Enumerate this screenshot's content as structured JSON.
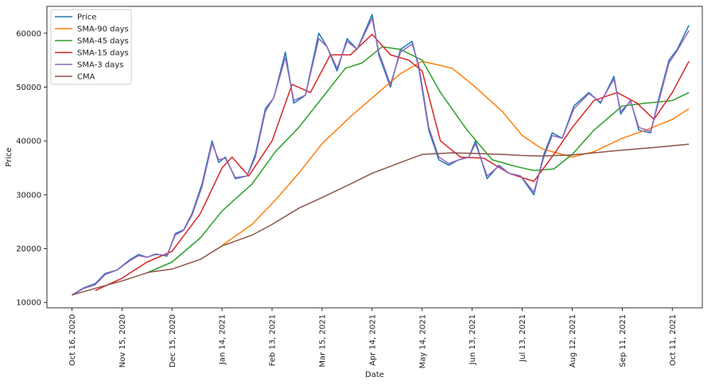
{
  "chart_data": {
    "type": "line",
    "title": "",
    "xlabel": "Date",
    "ylabel": "Price",
    "x_start": "2020-10-16",
    "x_end": "2021-10-21",
    "xlim": [
      "2020-10-01",
      "2021-10-29"
    ],
    "ylim": [
      9000,
      65000
    ],
    "x_ticks": [
      "2020-10-16",
      "2020-11-15",
      "2020-12-15",
      "2021-01-14",
      "2021-02-13",
      "2021-03-15",
      "2021-04-14",
      "2021-05-14",
      "2021-06-13",
      "2021-07-13",
      "2021-08-12",
      "2021-09-11",
      "2021-10-11"
    ],
    "x_tick_labels": [
      "Oct 16, 2020",
      "Nov 15, 2020",
      "Dec 15, 2020",
      "Jan 14, 2021",
      "Feb 13, 2021",
      "Mar 15, 2021",
      "Apr 14, 2021",
      "May 14, 2021",
      "Jun 13, 2021",
      "Jul 13, 2021",
      "Aug 12, 2021",
      "Sep 11, 2021",
      "Oct 11, 2021"
    ],
    "y_ticks": [
      10000,
      20000,
      30000,
      40000,
      50000,
      60000
    ],
    "grid": false,
    "legend_position": "top-left",
    "series": [
      {
        "name": "Price",
        "color": "#1f77b4",
        "points": [
          [
            "2020-10-16",
            11400
          ],
          [
            "2020-10-23",
            12700
          ],
          [
            "2020-10-30",
            13500
          ],
          [
            "2020-11-05",
            15400
          ],
          [
            "2020-11-12",
            16000
          ],
          [
            "2020-11-20",
            18000
          ],
          [
            "2020-11-25",
            18900
          ],
          [
            "2020-11-30",
            18400
          ],
          [
            "2020-12-05",
            19000
          ],
          [
            "2020-12-12",
            18600
          ],
          [
            "2020-12-17",
            22800
          ],
          [
            "2020-12-22",
            23500
          ],
          [
            "2020-12-27",
            26500
          ],
          [
            "2021-01-02",
            32000
          ],
          [
            "2021-01-08",
            40000
          ],
          [
            "2021-01-12",
            36000
          ],
          [
            "2021-01-16",
            37000
          ],
          [
            "2021-01-22",
            33000
          ],
          [
            "2021-01-29",
            33500
          ],
          [
            "2021-02-03",
            37500
          ],
          [
            "2021-02-09",
            46000
          ],
          [
            "2021-02-14",
            48000
          ],
          [
            "2021-02-21",
            56500
          ],
          [
            "2021-02-26",
            47000
          ],
          [
            "2021-03-05",
            48500
          ],
          [
            "2021-03-13",
            60000
          ],
          [
            "2021-03-18",
            57500
          ],
          [
            "2021-03-24",
            53000
          ],
          [
            "2021-03-30",
            59000
          ],
          [
            "2021-04-05",
            57000
          ],
          [
            "2021-04-14",
            63500
          ],
          [
            "2021-04-18",
            56000
          ],
          [
            "2021-04-25",
            50000
          ],
          [
            "2021-05-01",
            57000
          ],
          [
            "2021-05-08",
            58500
          ],
          [
            "2021-05-12",
            53500
          ],
          [
            "2021-05-18",
            42000
          ],
          [
            "2021-05-24",
            36500
          ],
          [
            "2021-05-30",
            35500
          ],
          [
            "2021-06-05",
            36500
          ],
          [
            "2021-06-11",
            37000
          ],
          [
            "2021-06-15",
            40000
          ],
          [
            "2021-06-22",
            33000
          ],
          [
            "2021-06-29",
            35500
          ],
          [
            "2021-07-05",
            34000
          ],
          [
            "2021-07-12",
            33500
          ],
          [
            "2021-07-20",
            30000
          ],
          [
            "2021-07-26",
            37500
          ],
          [
            "2021-07-31",
            41500
          ],
          [
            "2021-08-06",
            40500
          ],
          [
            "2021-08-13",
            46500
          ],
          [
            "2021-08-22",
            49000
          ],
          [
            "2021-08-29",
            47000
          ],
          [
            "2021-09-06",
            52000
          ],
          [
            "2021-09-10",
            45000
          ],
          [
            "2021-09-16",
            47500
          ],
          [
            "2021-09-21",
            42000
          ],
          [
            "2021-09-28",
            41500
          ],
          [
            "2021-10-03",
            48000
          ],
          [
            "2021-10-09",
            55000
          ],
          [
            "2021-10-14",
            57000
          ],
          [
            "2021-10-21",
            61500
          ]
        ]
      },
      {
        "name": "SMA-90 days",
        "color": "#ff7f0e",
        "points": [
          [
            "2021-01-14",
            20600
          ],
          [
            "2021-02-01",
            24500
          ],
          [
            "2021-02-15",
            29000
          ],
          [
            "2021-03-01",
            34000
          ],
          [
            "2021-03-15",
            39500
          ],
          [
            "2021-04-01",
            44500
          ],
          [
            "2021-04-14",
            48000
          ],
          [
            "2021-05-01",
            52500
          ],
          [
            "2021-05-14",
            54800
          ],
          [
            "2021-06-01",
            53500
          ],
          [
            "2021-06-13",
            50500
          ],
          [
            "2021-07-01",
            45500
          ],
          [
            "2021-07-13",
            41000
          ],
          [
            "2021-07-25",
            38500
          ],
          [
            "2021-08-12",
            37000
          ],
          [
            "2021-08-25",
            38000
          ],
          [
            "2021-09-11",
            40500
          ],
          [
            "2021-09-25",
            42000
          ],
          [
            "2021-10-11",
            44000
          ],
          [
            "2021-10-21",
            46000
          ]
        ]
      },
      {
        "name": "SMA-45 days",
        "color": "#2ca02c",
        "points": [
          [
            "2020-11-30",
            15500
          ],
          [
            "2020-12-15",
            17500
          ],
          [
            "2021-01-01",
            22000
          ],
          [
            "2021-01-14",
            27000
          ],
          [
            "2021-02-01",
            32000
          ],
          [
            "2021-02-15",
            38000
          ],
          [
            "2021-03-01",
            42500
          ],
          [
            "2021-03-15",
            48000
          ],
          [
            "2021-03-29",
            53500
          ],
          [
            "2021-04-08",
            54500
          ],
          [
            "2021-04-20",
            57500
          ],
          [
            "2021-05-01",
            57000
          ],
          [
            "2021-05-14",
            55000
          ],
          [
            "2021-05-25",
            49000
          ],
          [
            "2021-06-10",
            42000
          ],
          [
            "2021-06-25",
            36500
          ],
          [
            "2021-07-10",
            35200
          ],
          [
            "2021-07-20",
            34500
          ],
          [
            "2021-08-01",
            34800
          ],
          [
            "2021-08-12",
            37500
          ],
          [
            "2021-08-25",
            42000
          ],
          [
            "2021-09-11",
            46500
          ],
          [
            "2021-09-25",
            47000
          ],
          [
            "2021-10-11",
            47500
          ],
          [
            "2021-10-21",
            49000
          ]
        ]
      },
      {
        "name": "SMA-15 days",
        "color": "#d62728",
        "points": [
          [
            "2020-10-30",
            12200
          ],
          [
            "2020-11-15",
            14500
          ],
          [
            "2020-11-30",
            17500
          ],
          [
            "2020-12-15",
            19500
          ],
          [
            "2021-01-01",
            26500
          ],
          [
            "2021-01-14",
            35000
          ],
          [
            "2021-01-20",
            37000
          ],
          [
            "2021-01-30",
            33500
          ],
          [
            "2021-02-13",
            40000
          ],
          [
            "2021-02-25",
            50500
          ],
          [
            "2021-03-08",
            49000
          ],
          [
            "2021-03-20",
            56000
          ],
          [
            "2021-04-01",
            56000
          ],
          [
            "2021-04-14",
            59800
          ],
          [
            "2021-04-25",
            56000
          ],
          [
            "2021-05-06",
            55000
          ],
          [
            "2021-05-14",
            53000
          ],
          [
            "2021-05-25",
            40000
          ],
          [
            "2021-06-06",
            37000
          ],
          [
            "2021-06-20",
            36800
          ],
          [
            "2021-07-05",
            34000
          ],
          [
            "2021-07-20",
            32500
          ],
          [
            "2021-08-01",
            37500
          ],
          [
            "2021-08-12",
            42500
          ],
          [
            "2021-08-25",
            47500
          ],
          [
            "2021-09-08",
            49000
          ],
          [
            "2021-09-20",
            47000
          ],
          [
            "2021-09-30",
            44000
          ],
          [
            "2021-10-11",
            49000
          ],
          [
            "2021-10-21",
            54800
          ]
        ]
      },
      {
        "name": "SMA-3 days",
        "color": "#9467bd",
        "points": [
          [
            "2020-10-16",
            11300
          ],
          [
            "2020-10-23",
            12600
          ],
          [
            "2020-10-30",
            13300
          ],
          [
            "2020-11-05",
            15200
          ],
          [
            "2020-11-12",
            16000
          ],
          [
            "2020-11-20",
            17800
          ],
          [
            "2020-11-25",
            18700
          ],
          [
            "2020-11-30",
            18400
          ],
          [
            "2020-12-05",
            18900
          ],
          [
            "2020-12-12",
            18800
          ],
          [
            "2020-12-17",
            22500
          ],
          [
            "2020-12-22",
            23400
          ],
          [
            "2020-12-27",
            26200
          ],
          [
            "2021-01-02",
            31500
          ],
          [
            "2021-01-08",
            39500
          ],
          [
            "2021-01-12",
            36500
          ],
          [
            "2021-01-16",
            36800
          ],
          [
            "2021-01-22",
            33200
          ],
          [
            "2021-01-29",
            33500
          ],
          [
            "2021-02-03",
            37000
          ],
          [
            "2021-02-09",
            45500
          ],
          [
            "2021-02-14",
            48000
          ],
          [
            "2021-02-21",
            55500
          ],
          [
            "2021-02-26",
            47500
          ],
          [
            "2021-03-05",
            48500
          ],
          [
            "2021-03-13",
            59000
          ],
          [
            "2021-03-18",
            57500
          ],
          [
            "2021-03-24",
            53500
          ],
          [
            "2021-03-30",
            58500
          ],
          [
            "2021-04-05",
            57000
          ],
          [
            "2021-04-14",
            62800
          ],
          [
            "2021-04-18",
            56500
          ],
          [
            "2021-04-25",
            50500
          ],
          [
            "2021-05-01",
            56500
          ],
          [
            "2021-05-08",
            58000
          ],
          [
            "2021-05-12",
            54000
          ],
          [
            "2021-05-18",
            42500
          ],
          [
            "2021-05-24",
            37000
          ],
          [
            "2021-05-30",
            35800
          ],
          [
            "2021-06-05",
            36500
          ],
          [
            "2021-06-11",
            37000
          ],
          [
            "2021-06-15",
            39500
          ],
          [
            "2021-06-22",
            33500
          ],
          [
            "2021-06-29",
            35300
          ],
          [
            "2021-07-05",
            34000
          ],
          [
            "2021-07-12",
            33500
          ],
          [
            "2021-07-20",
            30500
          ],
          [
            "2021-07-26",
            37000
          ],
          [
            "2021-07-31",
            41000
          ],
          [
            "2021-08-06",
            40500
          ],
          [
            "2021-08-13",
            46000
          ],
          [
            "2021-08-22",
            48800
          ],
          [
            "2021-08-29",
            47200
          ],
          [
            "2021-09-06",
            51500
          ],
          [
            "2021-09-10",
            45500
          ],
          [
            "2021-09-16",
            47300
          ],
          [
            "2021-09-21",
            42500
          ],
          [
            "2021-09-28",
            41800
          ],
          [
            "2021-10-03",
            47500
          ],
          [
            "2021-10-09",
            54500
          ],
          [
            "2021-10-14",
            56800
          ],
          [
            "2021-10-21",
            60500
          ]
        ]
      },
      {
        "name": "CMA",
        "color": "#8c564b",
        "points": [
          [
            "2020-10-16",
            11400
          ],
          [
            "2020-11-01",
            12800
          ],
          [
            "2020-11-15",
            14000
          ],
          [
            "2020-12-01",
            15600
          ],
          [
            "2020-12-15",
            16200
          ],
          [
            "2021-01-01",
            18000
          ],
          [
            "2021-01-14",
            20500
          ],
          [
            "2021-02-01",
            22500
          ],
          [
            "2021-02-13",
            24500
          ],
          [
            "2021-03-01",
            27500
          ],
          [
            "2021-03-15",
            29500
          ],
          [
            "2021-04-01",
            32000
          ],
          [
            "2021-04-14",
            34000
          ],
          [
            "2021-05-01",
            36000
          ],
          [
            "2021-05-14",
            37500
          ],
          [
            "2021-06-01",
            37800
          ],
          [
            "2021-06-13",
            37700
          ],
          [
            "2021-07-01",
            37500
          ],
          [
            "2021-07-13",
            37300
          ],
          [
            "2021-07-25",
            37200
          ],
          [
            "2021-08-12",
            37400
          ],
          [
            "2021-09-01",
            38000
          ],
          [
            "2021-09-11",
            38300
          ],
          [
            "2021-10-01",
            38800
          ],
          [
            "2021-10-21",
            39400
          ]
        ]
      }
    ]
  }
}
